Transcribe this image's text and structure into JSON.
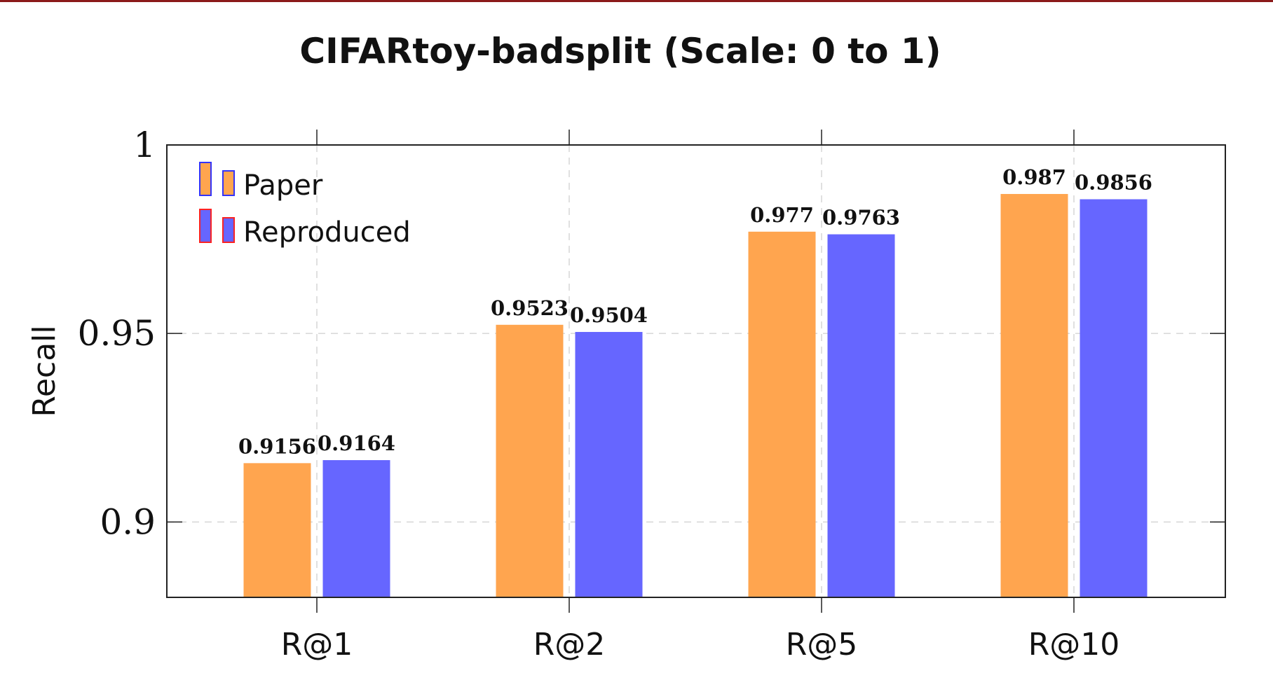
{
  "chart_data": {
    "type": "bar",
    "title": "CIFARtoy-badsplit (Scale: 0 to 1)",
    "xlabel": "",
    "ylabel": "Recall",
    "categories": [
      "R@1",
      "R@2",
      "R@5",
      "R@10"
    ],
    "series": [
      {
        "name": "Paper",
        "color": "#ffa54f",
        "legend_border": "#3333ff",
        "values": [
          0.9156,
          0.9523,
          0.977,
          0.987
        ]
      },
      {
        "name": "Reproduced",
        "color": "#6666ff",
        "legend_border": "#ff2222",
        "values": [
          0.9164,
          0.9504,
          0.9763,
          0.9856
        ]
      }
    ],
    "value_labels": [
      [
        "0.9156",
        "0.9523",
        "0.977",
        "0.987"
      ],
      [
        "0.9164",
        "0.9504",
        "0.9763",
        "0.9856"
      ]
    ],
    "ylim": [
      0.88,
      1.0
    ],
    "yticks": [
      0.9,
      0.95,
      1
    ],
    "ytick_labels": [
      "0.9",
      "0.95",
      "1"
    ],
    "grid": true,
    "legend_position": "top-left"
  }
}
